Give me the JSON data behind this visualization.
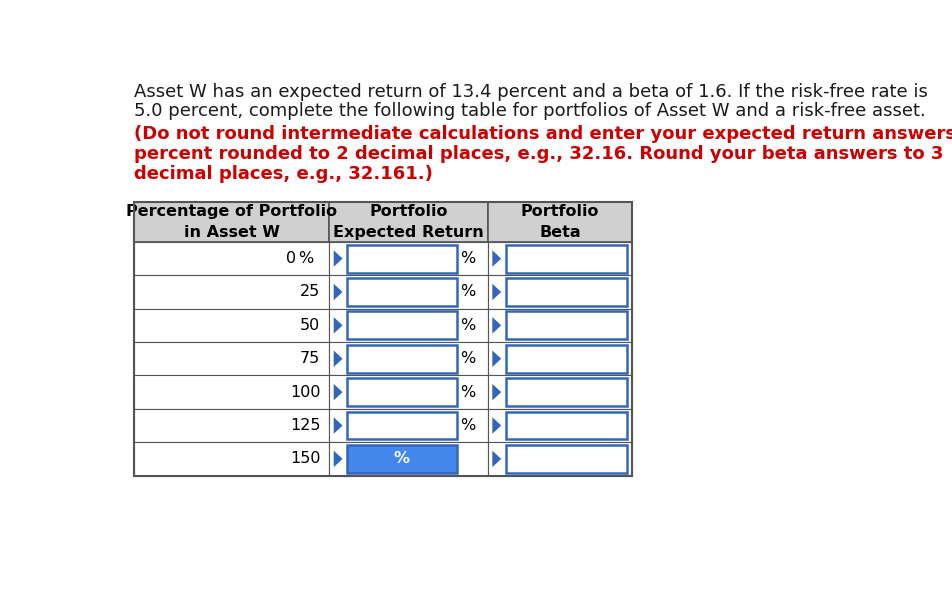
{
  "title_line1": "Asset W has an expected return of 13.4 percent and a beta of 1.6. If the risk-free rate is",
  "title_line2": "5.0 percent, complete the following table for portfolios of Asset W and a risk-free asset.",
  "instruction_line1": "(Do not round intermediate calculations and enter your expected return answers as a",
  "instruction_line2": "percent rounded to 2 decimal places, e.g., 32.16. Round your beta answers to 3",
  "instruction_line3": "decimal places, e.g., 32.161.)",
  "rows": [
    "0",
    "25",
    "50",
    "75",
    "100",
    "125",
    "150"
  ],
  "percent_symbols": [
    "%",
    "%",
    "%",
    "%",
    "%",
    "%",
    "%"
  ],
  "bg_color": "#ffffff",
  "header_bg": "#d0d0d0",
  "table_border_color": "#555555",
  "input_border_color": "#3366bb",
  "triangle_color": "#3366bb",
  "highlight_color": "#4488ee",
  "text_color_black": "#1a1a1a",
  "text_color_red": "#cc0000",
  "font_size_text": 13,
  "font_size_table": 11.5
}
